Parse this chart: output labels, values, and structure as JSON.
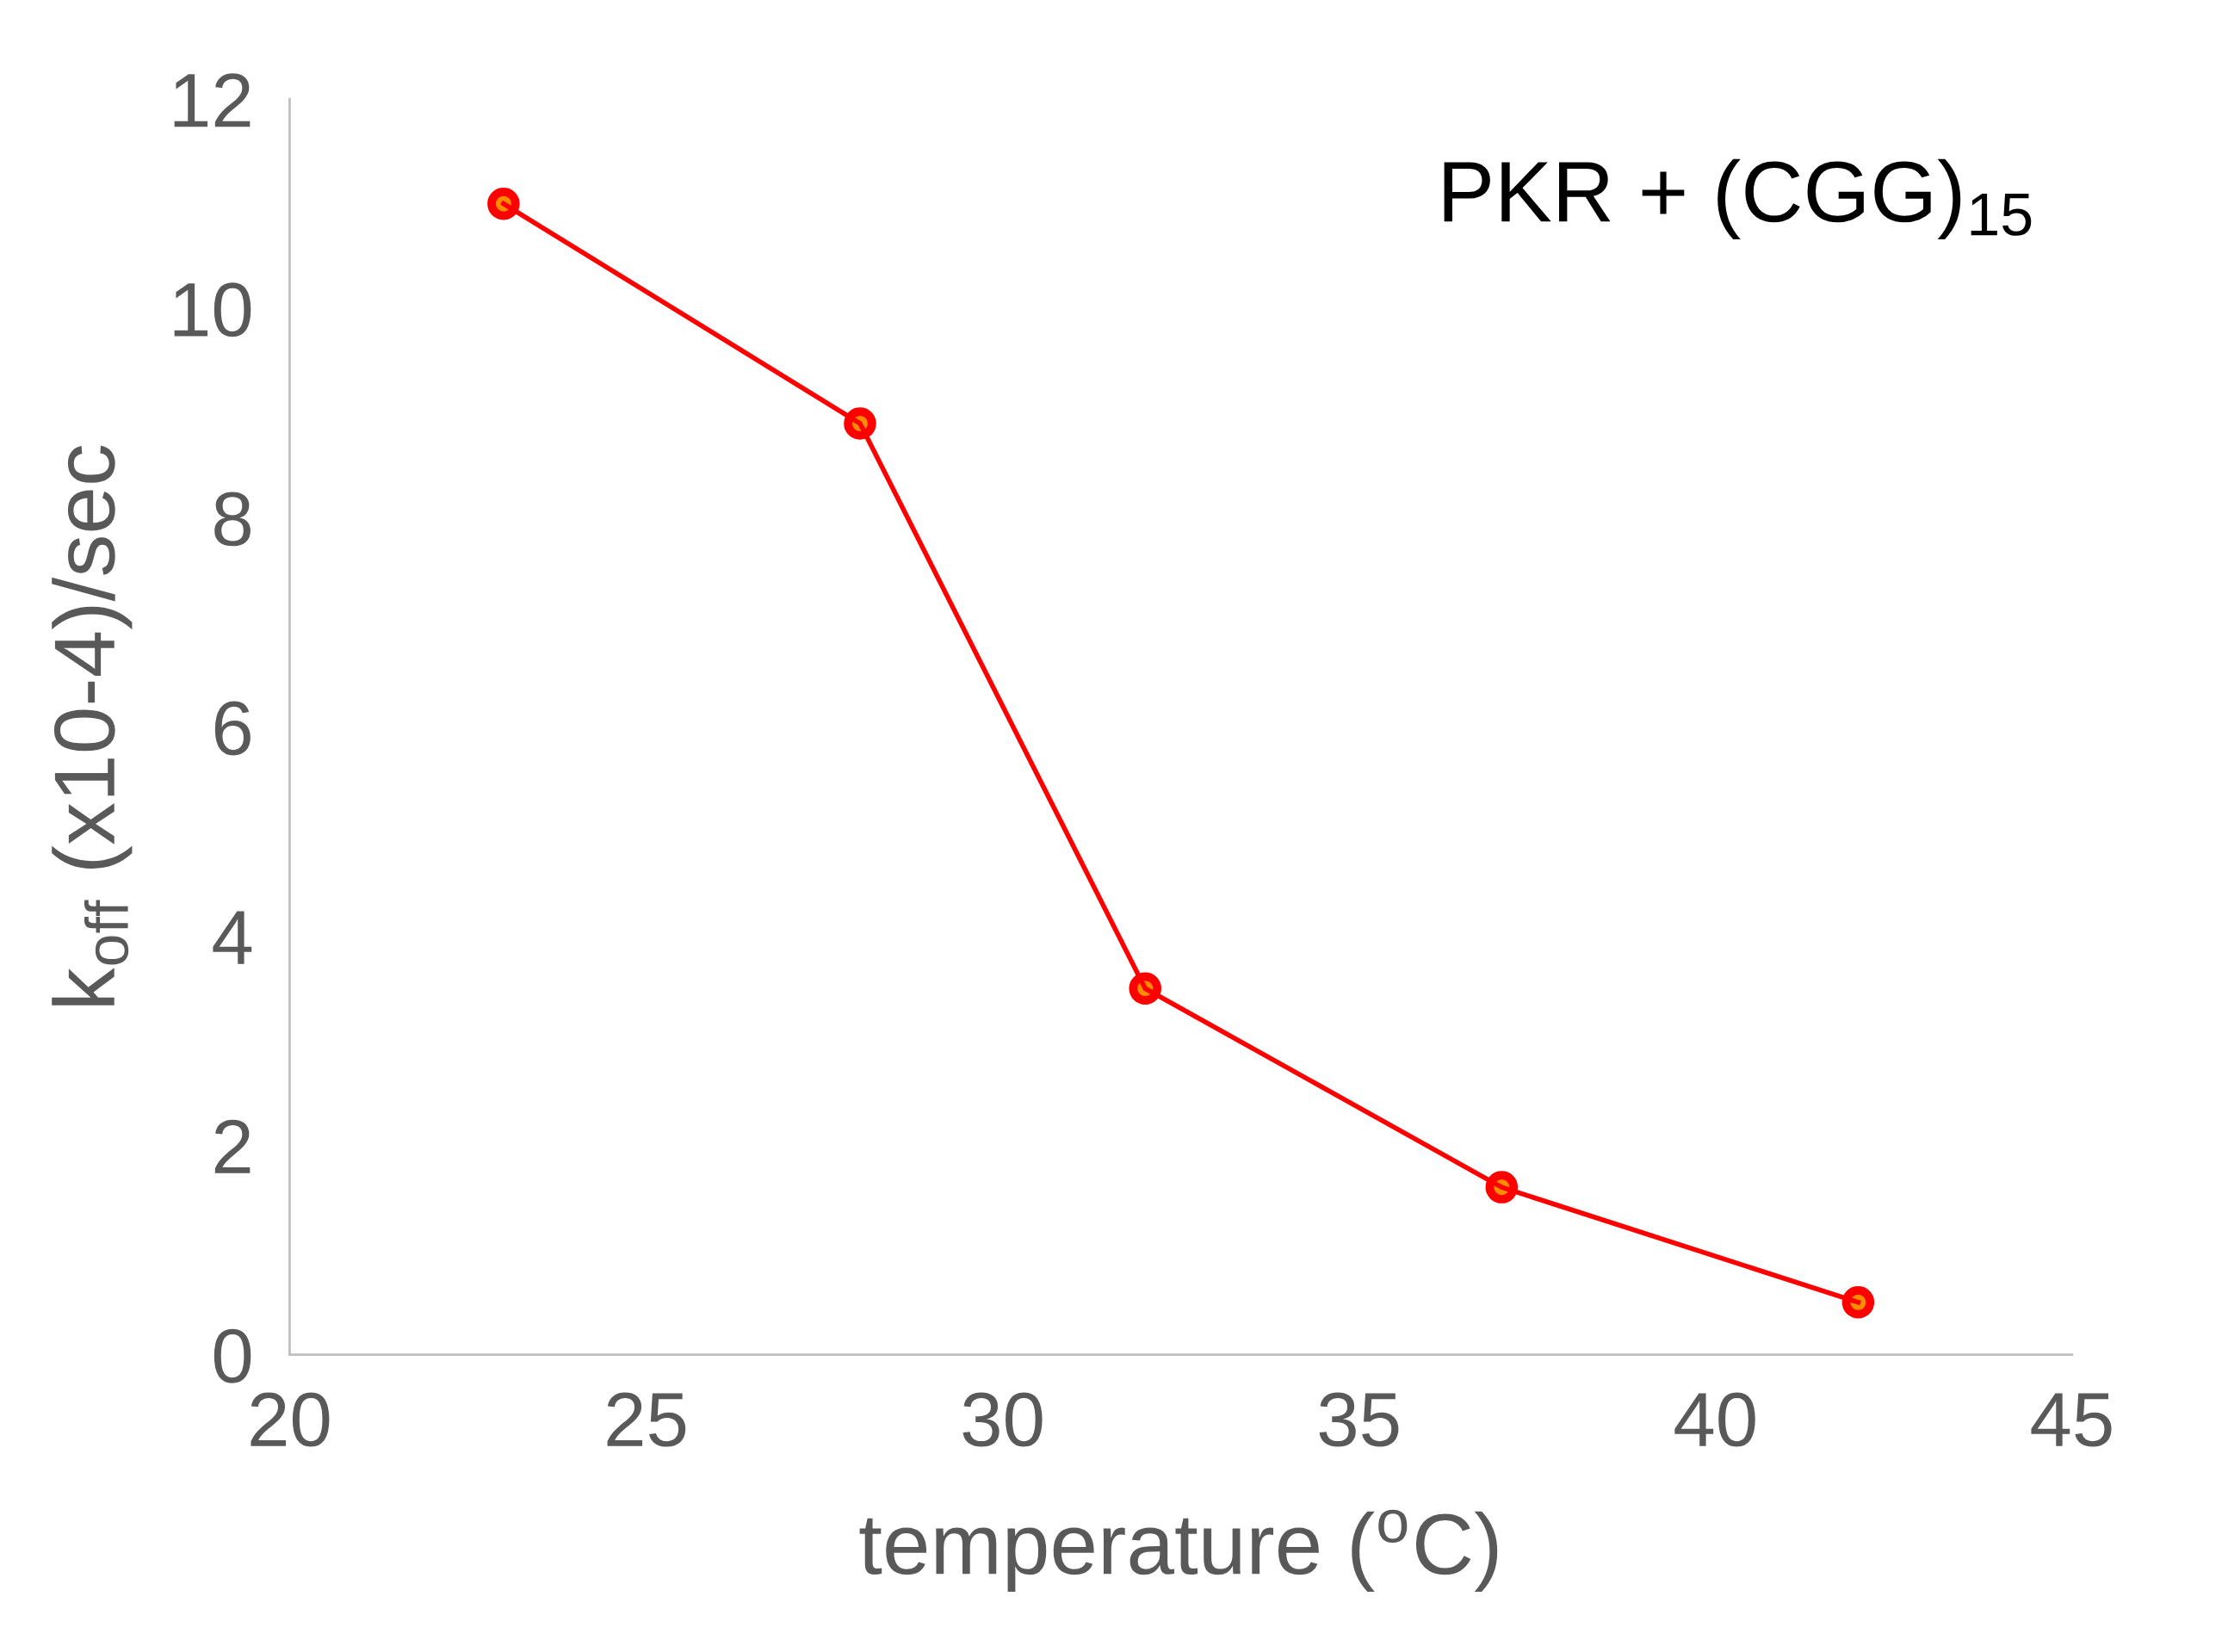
{
  "chart_data": {
    "type": "line",
    "xlabel": "temperature ($^{o}$C)",
    "ylabel": "k$_{off}$ (x10-4)/sec",
    "annotations": [
      "PKR + (CGG)$_{15}$"
    ],
    "x": [
      23,
      28,
      32,
      37,
      42
    ],
    "series": [
      {
        "color": "#ff0000",
        "values": [
          11.0,
          8.9,
          3.5,
          1.6,
          0.5
        ]
      }
    ],
    "xlim": [
      20,
      45
    ],
    "xticks": [
      20,
      25,
      30,
      35,
      40,
      45
    ],
    "ylim": [
      0,
      12
    ],
    "yticks": [
      0,
      2,
      4,
      6,
      8,
      10,
      12
    ],
    "grid": false,
    "legend": false,
    "marker": "circle",
    "line_style": "solid"
  }
}
